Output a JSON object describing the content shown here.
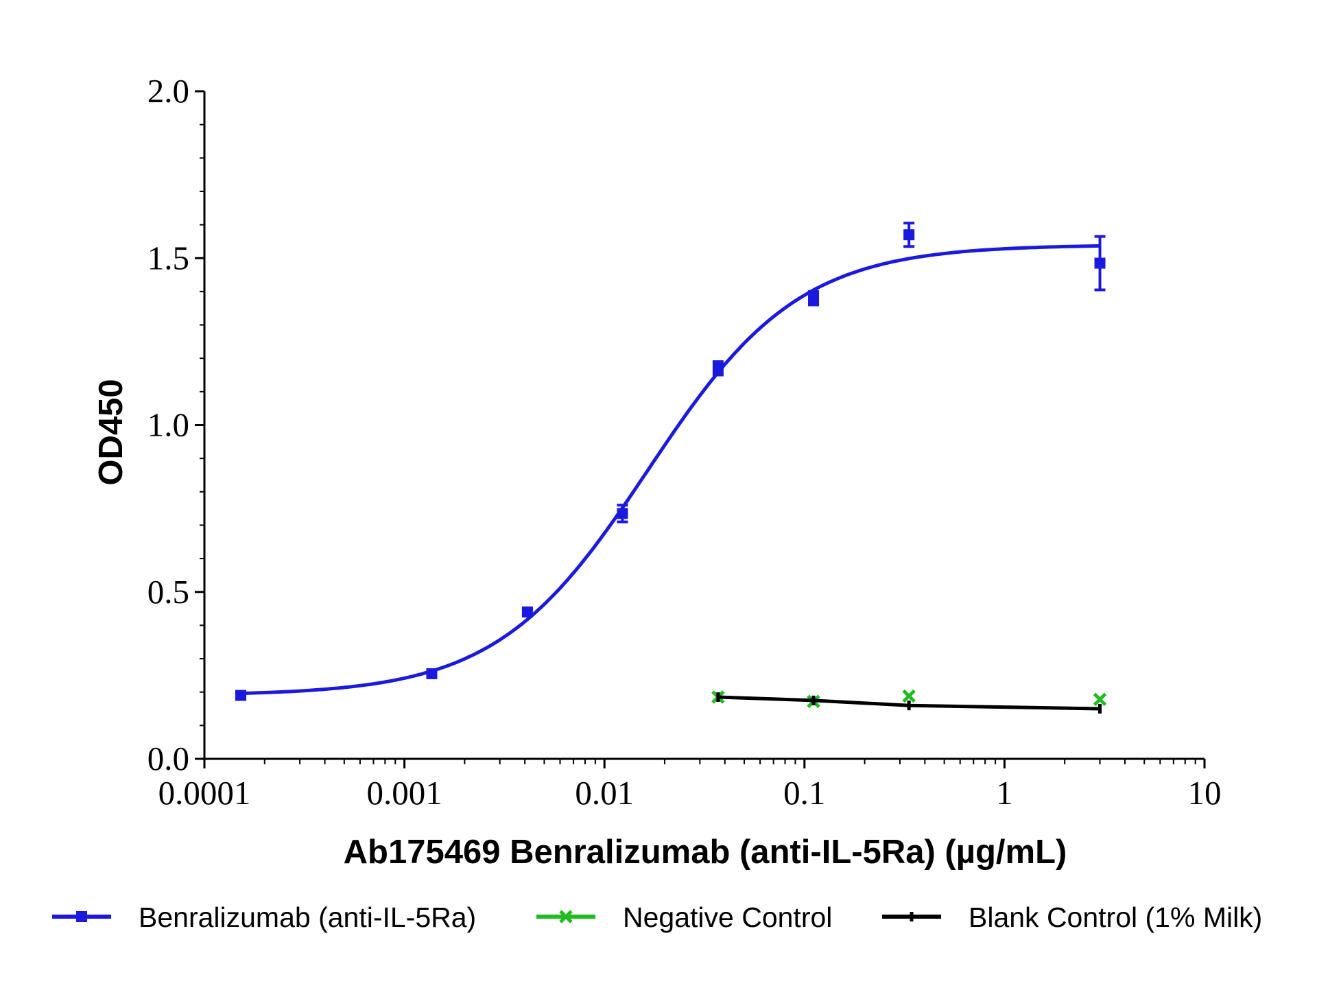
{
  "chart_data": {
    "type": "line",
    "xlabel": "Ab175469 Benralizumab (anti-IL-5Ra) (µg/mL)",
    "ylabel": "OD450",
    "x_scale": "log",
    "xlim": [
      0.0001,
      10
    ],
    "ylim": [
      0,
      2.0
    ],
    "x_ticks": [
      0.0001,
      0.001,
      0.01,
      0.1,
      1,
      10
    ],
    "x_tick_labels": [
      "0.0001",
      "0.001",
      "0.01",
      "0.1",
      "1",
      "10"
    ],
    "y_ticks": [
      0,
      0.5,
      1.0,
      1.5,
      2.0
    ],
    "y_tick_labels": [
      "0.0",
      "0.5",
      "1.0",
      "1.5",
      "2.0"
    ],
    "grid": false,
    "legend_position": "bottom",
    "series": [
      {
        "name": "Benralizumab (anti-IL-5Ra)",
        "color": "#1a1adf",
        "marker": "square",
        "x": [
          0.000152,
          0.00137,
          0.00412,
          0.0123,
          0.037,
          0.111,
          0.333,
          3.0
        ],
        "y": [
          0.19,
          0.255,
          0.44,
          0.735,
          1.17,
          1.38,
          1.57,
          1.485
        ],
        "err": [
          0.008,
          0.008,
          0.01,
          0.025,
          0.02,
          0.02,
          0.035,
          0.08
        ],
        "fit": {
          "bottom": 0.19,
          "top": 1.54,
          "ec50": 0.0165,
          "hill": 1.15
        }
      },
      {
        "name": "Negative Control",
        "color": "#22bb22",
        "marker": "x",
        "x": [
          0.037,
          0.111,
          0.333,
          3.0
        ],
        "y": [
          0.185,
          0.172,
          0.188,
          0.178
        ]
      },
      {
        "name": "Blank Control (1% Milk)",
        "color": "#000000",
        "marker": "tick",
        "x": [
          0.037,
          0.111,
          0.333,
          3.0
        ],
        "y": [
          0.185,
          0.175,
          0.16,
          0.15
        ]
      }
    ]
  }
}
